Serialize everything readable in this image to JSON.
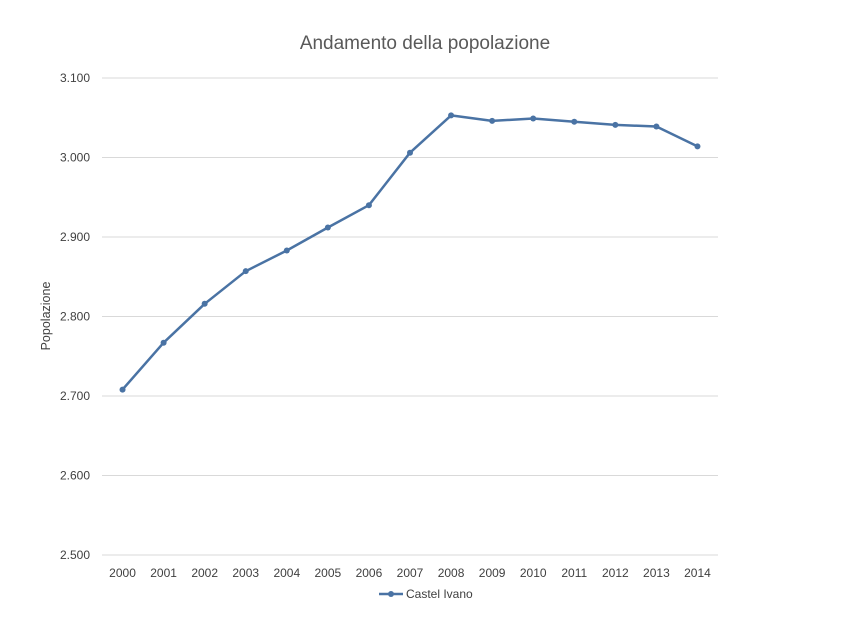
{
  "chart_data": {
    "type": "line",
    "title": "Andamento della popolazione",
    "xlabel": "",
    "ylabel": "Popolazione",
    "x": [
      "2000",
      "2001",
      "2002",
      "2003",
      "2004",
      "2005",
      "2006",
      "2007",
      "2008",
      "2009",
      "2010",
      "2011",
      "2012",
      "2013",
      "2014"
    ],
    "series": [
      {
        "name": "Castel Ivano",
        "color": "#4a73a4",
        "values": [
          2708,
          2767,
          2816,
          2857,
          2883,
          2912,
          2940,
          3006,
          3053,
          3046,
          3049,
          3045,
          3041,
          3039,
          3014
        ]
      }
    ],
    "ylim": [
      2500,
      3100
    ],
    "yticks": [
      2500,
      2600,
      2700,
      2800,
      2900,
      3000,
      3100
    ],
    "ytick_labels": [
      "2.500",
      "2.600",
      "2.700",
      "2.800",
      "2.900",
      "3.000",
      "3.100"
    ],
    "grid": true,
    "legend_position": "bottom"
  }
}
